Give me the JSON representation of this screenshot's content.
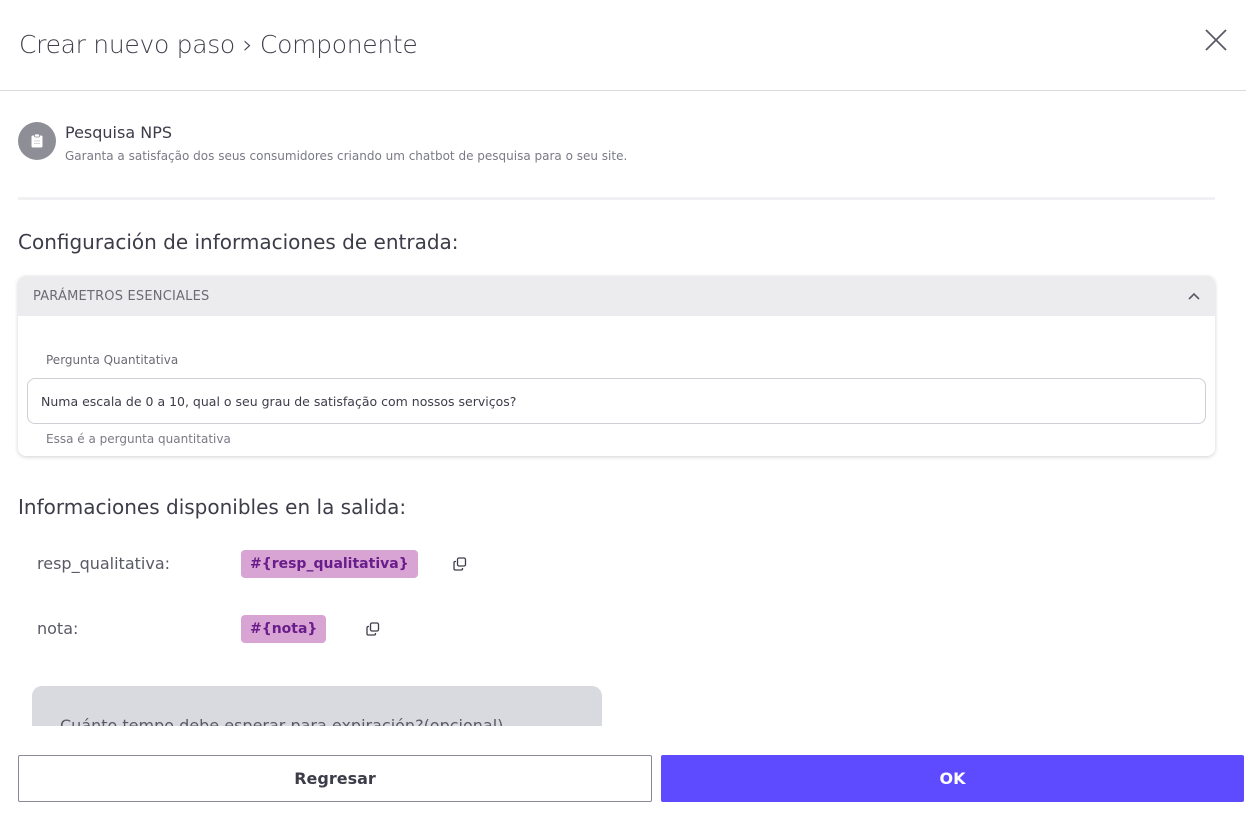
{
  "header": {
    "title": "Crear nuevo paso › Componente",
    "close_icon": "close-icon"
  },
  "component": {
    "name": "Pesquisa NPS",
    "description": "Garanta a satisfação dos seus consumidores criando um chatbot de pesquisa para o seu site.",
    "icon": "clipboard-icon"
  },
  "input_section": {
    "title": "Configuración de informaciones de entrada:",
    "panel_title": "PARÁMETROS ESENCIALES",
    "field_label": "Pergunta Quantitativa",
    "field_value": "Numa escala de 0 a 10, qual o seu grau de satisfação com nossos serviços?",
    "field_hint": "Essa é a pergunta quantitativa"
  },
  "output_section": {
    "title": "Informaciones disponibles en la salida:",
    "items": [
      {
        "name": "resp_qualitativa:",
        "tag": "#{resp_qualitativa}"
      },
      {
        "name": "nota:",
        "tag": "#{nota}"
      }
    ]
  },
  "expiration_box": {
    "text": "Cuánto tempo debe esperar para expiración?(opcional)"
  },
  "footer": {
    "back_label": "Regresar",
    "ok_label": "OK"
  },
  "colors": {
    "primary": "#5f4bff",
    "tag_bg": "#d8a4d4",
    "tag_text": "#6a1d8a"
  }
}
